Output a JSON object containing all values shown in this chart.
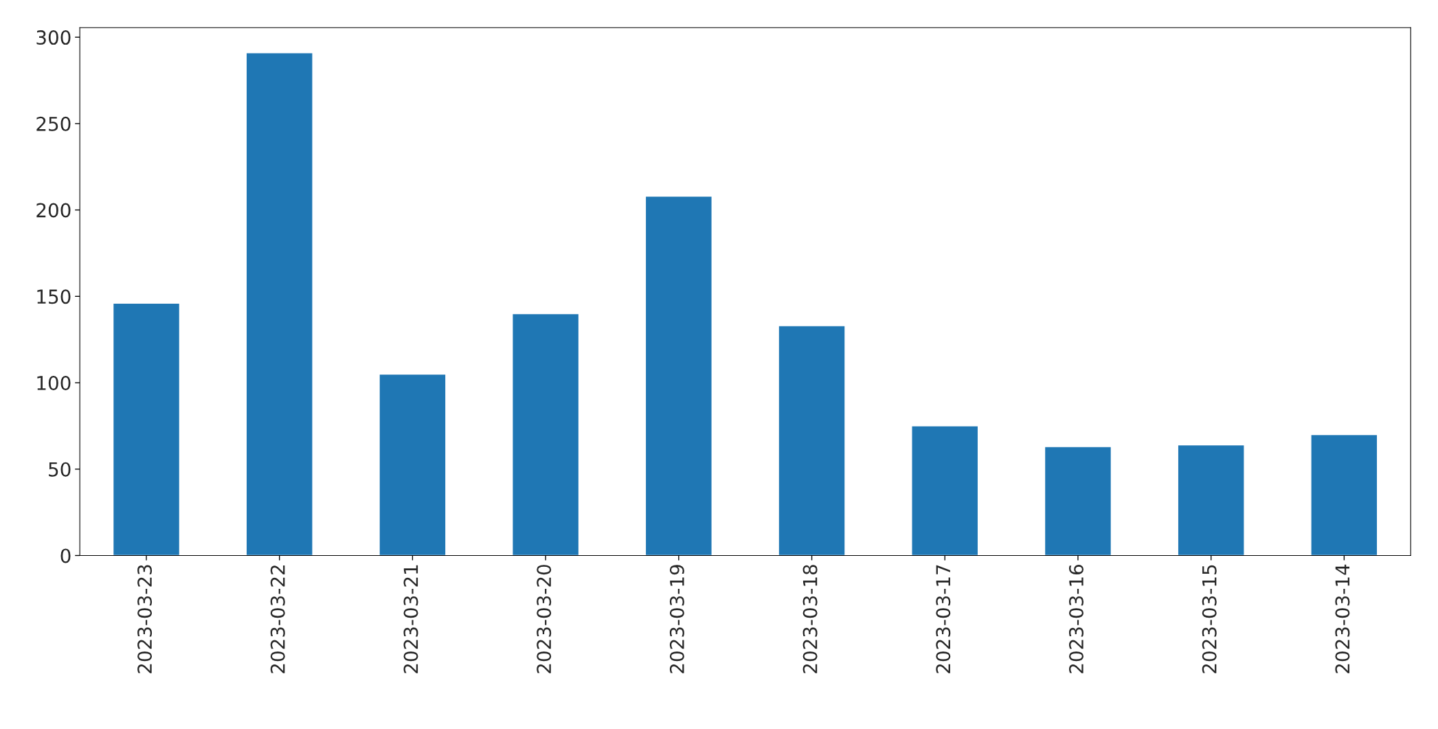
{
  "chart_data": {
    "type": "bar",
    "categories": [
      "2023-03-23",
      "2023-03-22",
      "2023-03-21",
      "2023-03-20",
      "2023-03-19",
      "2023-03-18",
      "2023-03-17",
      "2023-03-16",
      "2023-03-15",
      "2023-03-14"
    ],
    "values": [
      146,
      291,
      105,
      140,
      208,
      133,
      75,
      63,
      64,
      70
    ],
    "color": "#1f77b4",
    "ylim": [
      0,
      305.5
    ],
    "yticks": [
      0,
      50,
      100,
      150,
      200,
      250,
      300
    ],
    "grid": false
  }
}
